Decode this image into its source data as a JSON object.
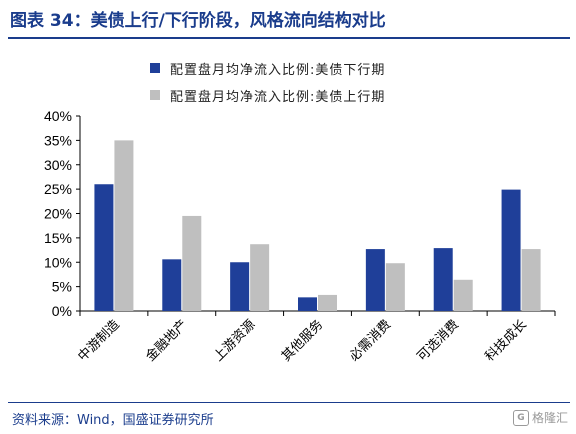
{
  "header": {
    "title": "图表 34：美债上行/下行阶段，风格流向结构对比"
  },
  "source": "资料来源：Wind，国盛证券研究所",
  "watermark": "格隆汇",
  "chart_data": {
    "type": "bar",
    "title": "",
    "xlabel": "",
    "ylabel": "",
    "categories": [
      "中游制造",
      "金融地产",
      "上游资源",
      "其他服务",
      "必需消费",
      "可选消费",
      "科技成长"
    ],
    "series": [
      {
        "name": "配置盘月均净流入比例:美债下行期",
        "color": "#1f3f99",
        "values": [
          26.0,
          10.6,
          10.0,
          2.8,
          12.7,
          12.9,
          24.9
        ]
      },
      {
        "name": "配置盘月均净流入比例:美债上行期",
        "color": "#bfbfbf",
        "values": [
          35.0,
          19.5,
          13.7,
          3.3,
          9.8,
          6.4,
          12.7
        ]
      }
    ],
    "ylim": [
      0,
      40
    ],
    "yticks": [
      "0%",
      "5%",
      "10%",
      "15%",
      "20%",
      "25%",
      "30%",
      "35%",
      "40%"
    ],
    "grid": false,
    "legend_position": "top"
  }
}
